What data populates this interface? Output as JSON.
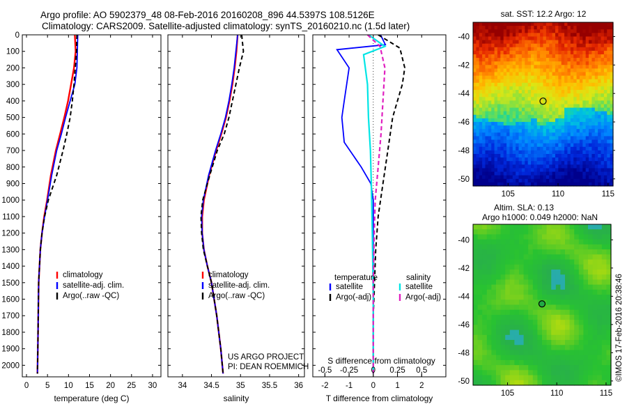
{
  "header": {
    "line1": "Argo profile: AO 5902379_48 08-Feb-2016 20160208_896 44.5397S 108.5126E",
    "line2": "Climatology: CARS2009. Satellite-adjusted climatology: synTS_20160210.nc (1.5d later)"
  },
  "colors": {
    "climatology": "#ff0000",
    "satellite": "#0000ff",
    "argo": "#000000",
    "sat_salinity": "#00e5e5",
    "argo_salinity": "#e020c0"
  },
  "sst_map": {
    "title": "sat. SST: 12.2 Argo: 12",
    "xticks": [
      "105",
      "110",
      "115"
    ],
    "yticks": [
      "-40",
      "-42",
      "-44",
      "-46",
      "-48",
      "-50"
    ],
    "xlim": [
      101.5,
      115.5
    ],
    "ylim": [
      -50.5,
      -39
    ],
    "marker": {
      "lon": 108.5,
      "lat": -44.54
    }
  },
  "sla_map": {
    "title1": "Altim. SLA: 0.13",
    "title2": "Argo h1000: 0.049 h2000: NaN",
    "xticks": [
      "105",
      "110",
      "115"
    ],
    "yticks": [
      "-40",
      "-42",
      "-44",
      "-46",
      "-48",
      "-50"
    ],
    "xlim": [
      101.5,
      115.5
    ],
    "ylim": [
      -50.3,
      -38.9
    ],
    "marker": {
      "lon": 108.5,
      "lat": -44.54
    }
  },
  "side_label": "©IMOS 17-Feb-2016 20:38:46",
  "credit": {
    "line1": "US ARGO PROJECT",
    "line2": "PI: DEAN ROEMMICH"
  },
  "chart_data": [
    {
      "type": "line",
      "xlabel": "temperature (deg C)",
      "ylabel": "",
      "xlim": [
        -1,
        32
      ],
      "ylim": [
        2070,
        0
      ],
      "xticks": [
        "0",
        "5",
        "10",
        "15",
        "20",
        "25",
        "30"
      ],
      "yticks": [
        "0",
        "100",
        "200",
        "300",
        "400",
        "500",
        "600",
        "700",
        "800",
        "900",
        "1000",
        "1100",
        "1200",
        "1300",
        "1400",
        "1500",
        "1600",
        "1700",
        "1800",
        "1900",
        "2000"
      ],
      "legend": [
        "climatology",
        "satellite-adj. clim.",
        "Argo(..raw -QC)"
      ],
      "series": [
        {
          "name": "climatology",
          "x": [
            11.5,
            11.7,
            11.3,
            10.6,
            9.9,
            9.0,
            8.0,
            7.0,
            5.8,
            4.9,
            4.2,
            3.7,
            3.3,
            3.1,
            2.9,
            2.8,
            2.7,
            2.6
          ],
          "y": [
            0,
            100,
            200,
            300,
            400,
            500,
            600,
            700,
            850,
            1000,
            1100,
            1200,
            1300,
            1400,
            1500,
            1700,
            1900,
            2050
          ]
        },
        {
          "name": "satellite-adj. clim.",
          "x": [
            12.2,
            12.1,
            12.0,
            11.5,
            10.4,
            9.3,
            8.3,
            7.2,
            6.0,
            5.0,
            4.3,
            3.7,
            3.3,
            3.1,
            2.9,
            2.8,
            2.7,
            2.6
          ],
          "y": [
            0,
            100,
            200,
            300,
            400,
            500,
            600,
            700,
            850,
            1000,
            1100,
            1200,
            1300,
            1400,
            1500,
            1700,
            1900,
            2050
          ]
        },
        {
          "name": "Argo(..raw -QC)",
          "x": [
            12.0,
            11.9,
            11.6,
            11.3,
            10.9,
            10.4,
            9.6,
            8.7,
            7.2,
            5.2,
            4.3,
            3.7,
            3.3,
            3.1,
            2.9,
            2.8,
            2.7,
            2.6
          ],
          "y": [
            0,
            100,
            200,
            300,
            400,
            500,
            600,
            700,
            850,
            1000,
            1100,
            1200,
            1300,
            1400,
            1500,
            1700,
            1900,
            2050
          ]
        }
      ]
    },
    {
      "type": "line",
      "xlabel": "salinity",
      "ylabel": "",
      "xlim": [
        33.75,
        36.1
      ],
      "ylim": [
        2070,
        0
      ],
      "xticks": [
        "34",
        "34.5",
        "35",
        "35.5",
        "36"
      ],
      "legend": [
        "climatology",
        "satellite-adj. clim.",
        "Argo(..raw -QC)"
      ],
      "series": [
        {
          "name": "climatology",
          "x": [
            34.95,
            34.93,
            34.9,
            34.86,
            34.81,
            34.75,
            34.67,
            34.58,
            34.46,
            34.37,
            34.34,
            34.34,
            34.37,
            34.43,
            34.5,
            34.59,
            34.66,
            34.7
          ],
          "y": [
            0,
            100,
            200,
            300,
            400,
            500,
            600,
            700,
            850,
            1000,
            1100,
            1200,
            1300,
            1400,
            1500,
            1700,
            1900,
            2050
          ]
        },
        {
          "name": "satellite-adj. clim.",
          "x": [
            34.95,
            34.92,
            34.89,
            34.85,
            34.8,
            34.74,
            34.66,
            34.57,
            34.45,
            34.36,
            34.33,
            34.34,
            34.37,
            34.43,
            34.5,
            34.59,
            34.66,
            34.7
          ],
          "y": [
            0,
            100,
            200,
            300,
            400,
            500,
            600,
            700,
            850,
            1000,
            1100,
            1200,
            1300,
            1400,
            1500,
            1700,
            1900,
            2050
          ]
        },
        {
          "name": "Argo(..raw -QC)",
          "x": [
            35.02,
            35.05,
            34.98,
            34.92,
            34.86,
            34.8,
            34.72,
            34.6,
            34.47,
            34.35,
            34.32,
            34.33,
            34.36,
            34.43,
            34.5,
            34.59,
            34.66,
            34.7
          ],
          "y": [
            0,
            100,
            200,
            300,
            400,
            500,
            600,
            700,
            850,
            1000,
            1100,
            1200,
            1300,
            1400,
            1500,
            1700,
            1900,
            2050
          ]
        }
      ]
    },
    {
      "type": "line",
      "xlabel": "T difference from climatology",
      "xlabel_top": "S difference from climatology",
      "xlim": [
        -2.5,
        3.0
      ],
      "ylim": [
        2070,
        0
      ],
      "xticks": [
        "-2",
        "-1",
        "0",
        "1",
        "2"
      ],
      "xticks_top": [
        "-0.5",
        "-0.25",
        "0",
        "0.25",
        "0.5"
      ],
      "legend_titles": [
        "temperature",
        "salinity"
      ],
      "legend": [
        "satellite",
        "Argo(-adj)",
        "satellite",
        "Argo(-adj)"
      ],
      "series": [
        {
          "name": "satellite",
          "x": [
            0.3,
            0.5,
            -1.5,
            -1.0,
            -1.1,
            -1.2,
            -1.3,
            -1.2,
            -0.5,
            -0.1,
            0.0,
            0.0,
            0.0,
            0.0,
            0.0,
            0.0
          ],
          "y": [
            0,
            60,
            90,
            200,
            300,
            400,
            500,
            650,
            800,
            900,
            1000,
            1200,
            1400,
            1600,
            1800,
            2050
          ]
        },
        {
          "name": "Argo(-adj)",
          "x": [
            0.2,
            1.1,
            1.3,
            1.2,
            1.0,
            0.8,
            0.6,
            0.4,
            0.2,
            0.1,
            0.05,
            0.0,
            0.0
          ],
          "y": [
            0,
            80,
            200,
            300,
            400,
            500,
            700,
            900,
            1100,
            1300,
            1500,
            1700,
            2050
          ]
        },
        {
          "name": "satellite",
          "x": [
            -0.05,
            0.12,
            -0.1,
            -0.06,
            -0.05,
            -0.03,
            -0.02,
            -0.01,
            0.0,
            0.0
          ],
          "y": [
            0,
            70,
            120,
            300,
            500,
            700,
            900,
            1200,
            1600,
            2050
          ]
        },
        {
          "name": "Argo(-adj)",
          "x": [
            -0.06,
            0.07,
            0.12,
            0.1,
            0.08,
            0.05,
            0.02,
            0.01,
            0.0,
            0.0
          ],
          "y": [
            0,
            70,
            200,
            400,
            600,
            800,
            1000,
            1200,
            1500,
            2050
          ]
        }
      ]
    }
  ]
}
